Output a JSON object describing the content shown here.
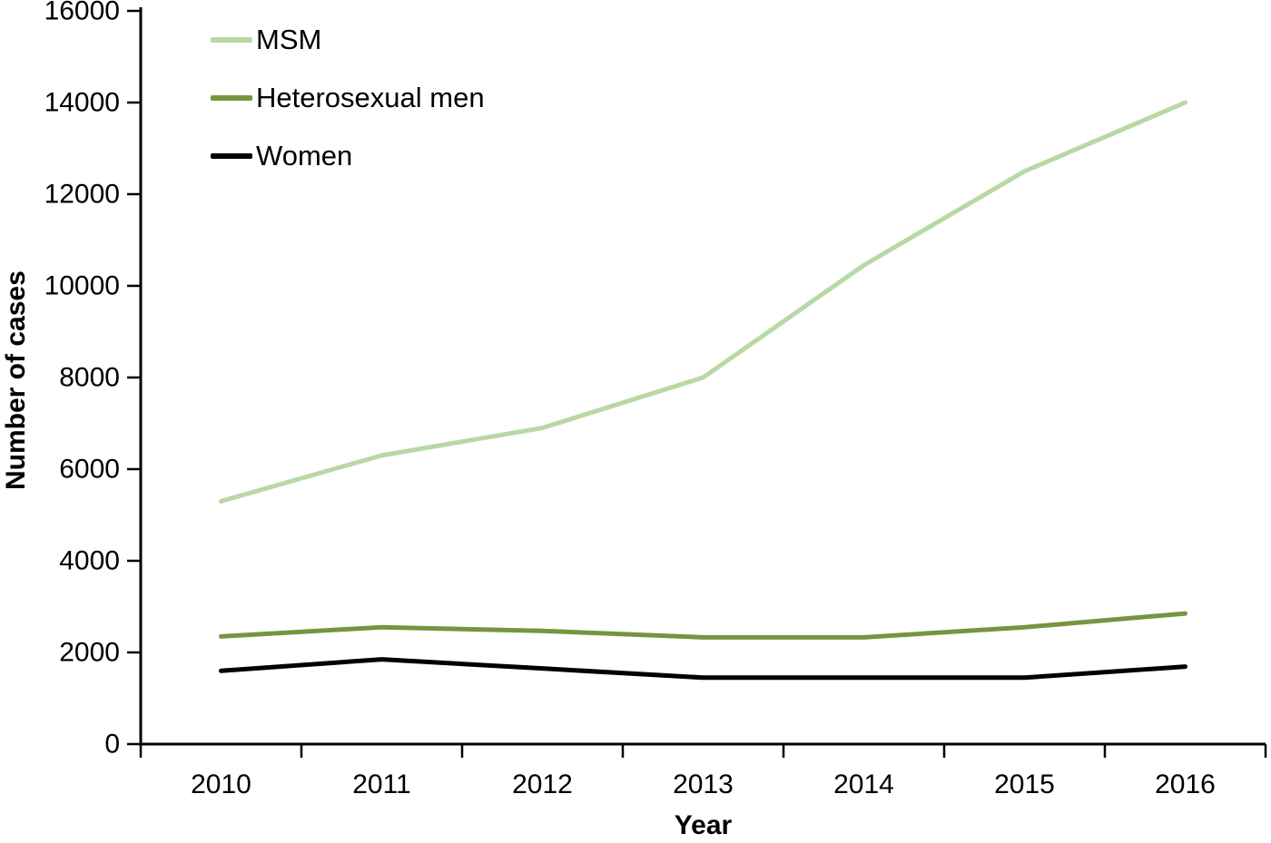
{
  "chart_data": {
    "type": "line",
    "title": "",
    "xlabel": "Year",
    "ylabel": "Number of cases",
    "categories": [
      "2010",
      "2011",
      "2012",
      "2013",
      "2014",
      "2015",
      "2016"
    ],
    "series": [
      {
        "name": "MSM",
        "color": "#b8d8a4",
        "values": [
          5300,
          6300,
          6900,
          8000,
          10450,
          12500,
          14000
        ]
      },
      {
        "name": "Heterosexual men",
        "color": "#77943e",
        "values": [
          2350,
          2550,
          2470,
          2330,
          2330,
          2550,
          2850
        ]
      },
      {
        "name": "Women",
        "color": "#000000",
        "values": [
          1600,
          1850,
          1650,
          1450,
          1450,
          1450,
          1690
        ]
      }
    ],
    "ylim": [
      0,
      16000
    ],
    "y_tick_step": 2000,
    "grid": false,
    "legend_position": "top-left"
  }
}
